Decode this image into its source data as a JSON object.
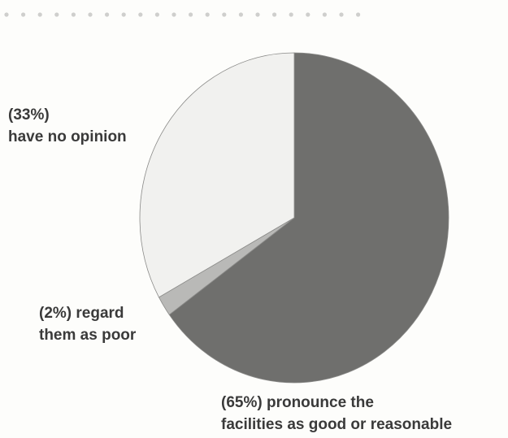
{
  "chart_data": {
    "type": "pie",
    "categories": [
      "have no opinion",
      "regard them as poor",
      "pronounce the facilities as good or reasonable"
    ],
    "values": [
      33,
      2,
      65
    ],
    "value_labels": [
      "(33%)",
      "(2%)",
      "(65%)"
    ],
    "colors": [
      "#f1f1ef",
      "#b9b9b7",
      "#6f6f6d"
    ]
  }
}
